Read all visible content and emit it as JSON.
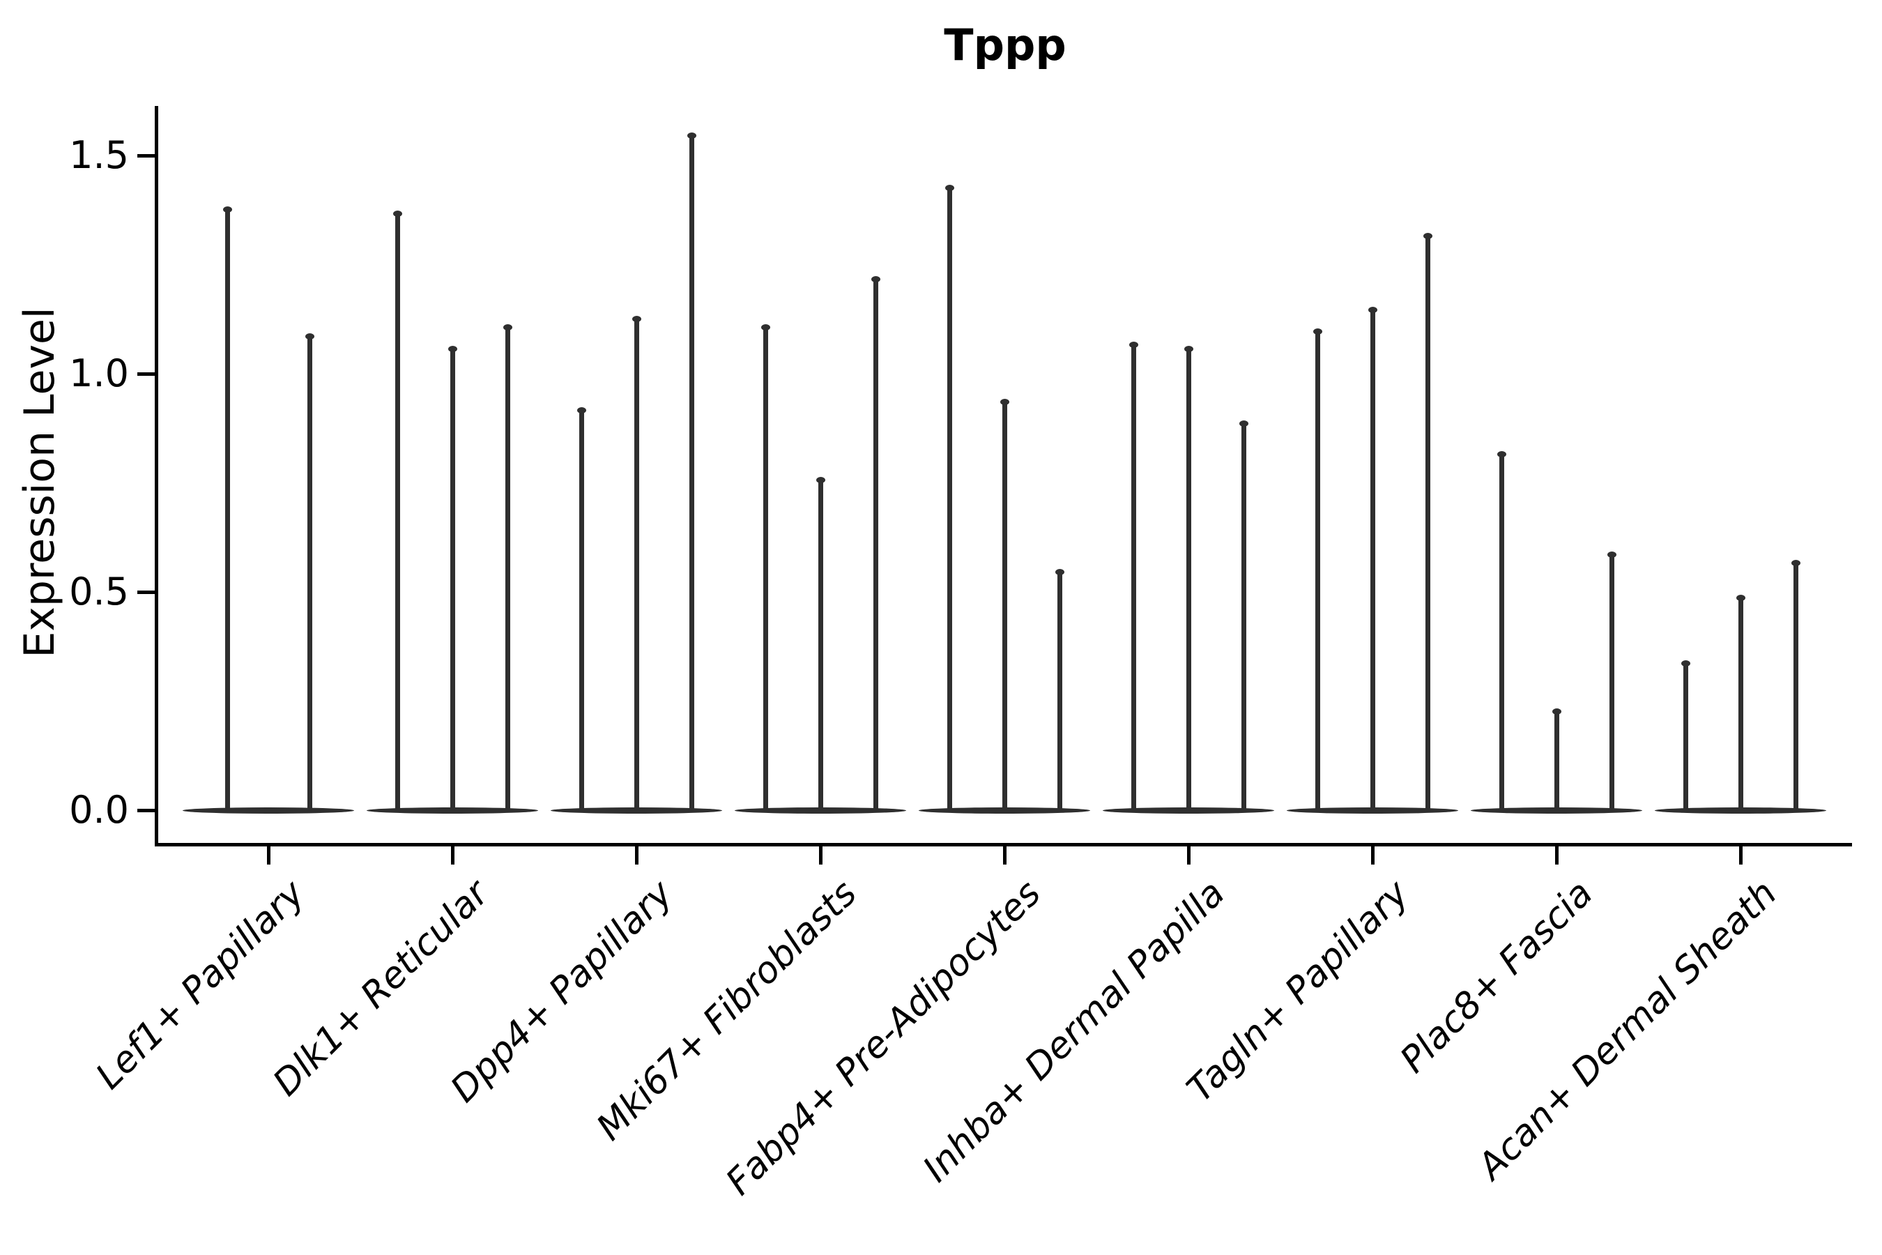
{
  "chart_data": {
    "type": "violin",
    "title": "Tppp",
    "ylabel": "Expression Level",
    "xlabel": "",
    "ytick_labels": [
      "0.0",
      "0.5",
      "1.0",
      "1.5"
    ],
    "ytick_values": [
      0.0,
      0.5,
      1.0,
      1.5
    ],
    "ylim": [
      -0.07,
      1.61
    ],
    "grid": false,
    "legend_position": "none",
    "style_notes": "thin spike violins with flat basal mass at 0; only left and bottom spines; x labels rotated 45 degrees, italic",
    "categories": [
      "Lef1+ Papillary",
      "Dlk1+ Reticular",
      "Dpp4+ Papillary",
      "Mki67+ Fibroblasts",
      "Fabp4+ Pre-Adipocytes",
      "Inhba+ Dermal Papilla",
      "Tagln+ Papillary",
      "Plac8+ Fascia",
      "Acan+ Dermal Sheath"
    ],
    "series": [
      {
        "category": "Lef1+ Papillary",
        "violin_maxima": [
          1.38,
          1.09
        ]
      },
      {
        "category": "Dlk1+ Reticular",
        "violin_maxima": [
          1.37,
          1.06,
          1.11
        ]
      },
      {
        "category": "Dpp4+ Papillary",
        "violin_maxima": [
          0.92,
          1.13,
          1.55
        ]
      },
      {
        "category": "Mki67+ Fibroblasts",
        "violin_maxima": [
          1.11,
          0.76,
          1.22
        ]
      },
      {
        "category": "Fabp4+ Pre-Adipocytes",
        "violin_maxima": [
          1.43,
          0.94,
          0.55
        ]
      },
      {
        "category": "Inhba+ Dermal Papilla",
        "violin_maxima": [
          1.07,
          1.06,
          0.89
        ]
      },
      {
        "category": "Tagln+ Papillary",
        "violin_maxima": [
          1.1,
          1.15,
          1.32
        ]
      },
      {
        "category": "Plac8+ Fascia",
        "violin_maxima": [
          0.82,
          0.23,
          0.59
        ]
      },
      {
        "category": "Acan+ Dermal Sheath",
        "violin_maxima": [
          0.34,
          0.49,
          0.57
        ]
      }
    ],
    "colors": {
      "violin": "#2f2f2f",
      "axis": "#000000",
      "text": "#000000",
      "background": "#ffffff"
    }
  }
}
